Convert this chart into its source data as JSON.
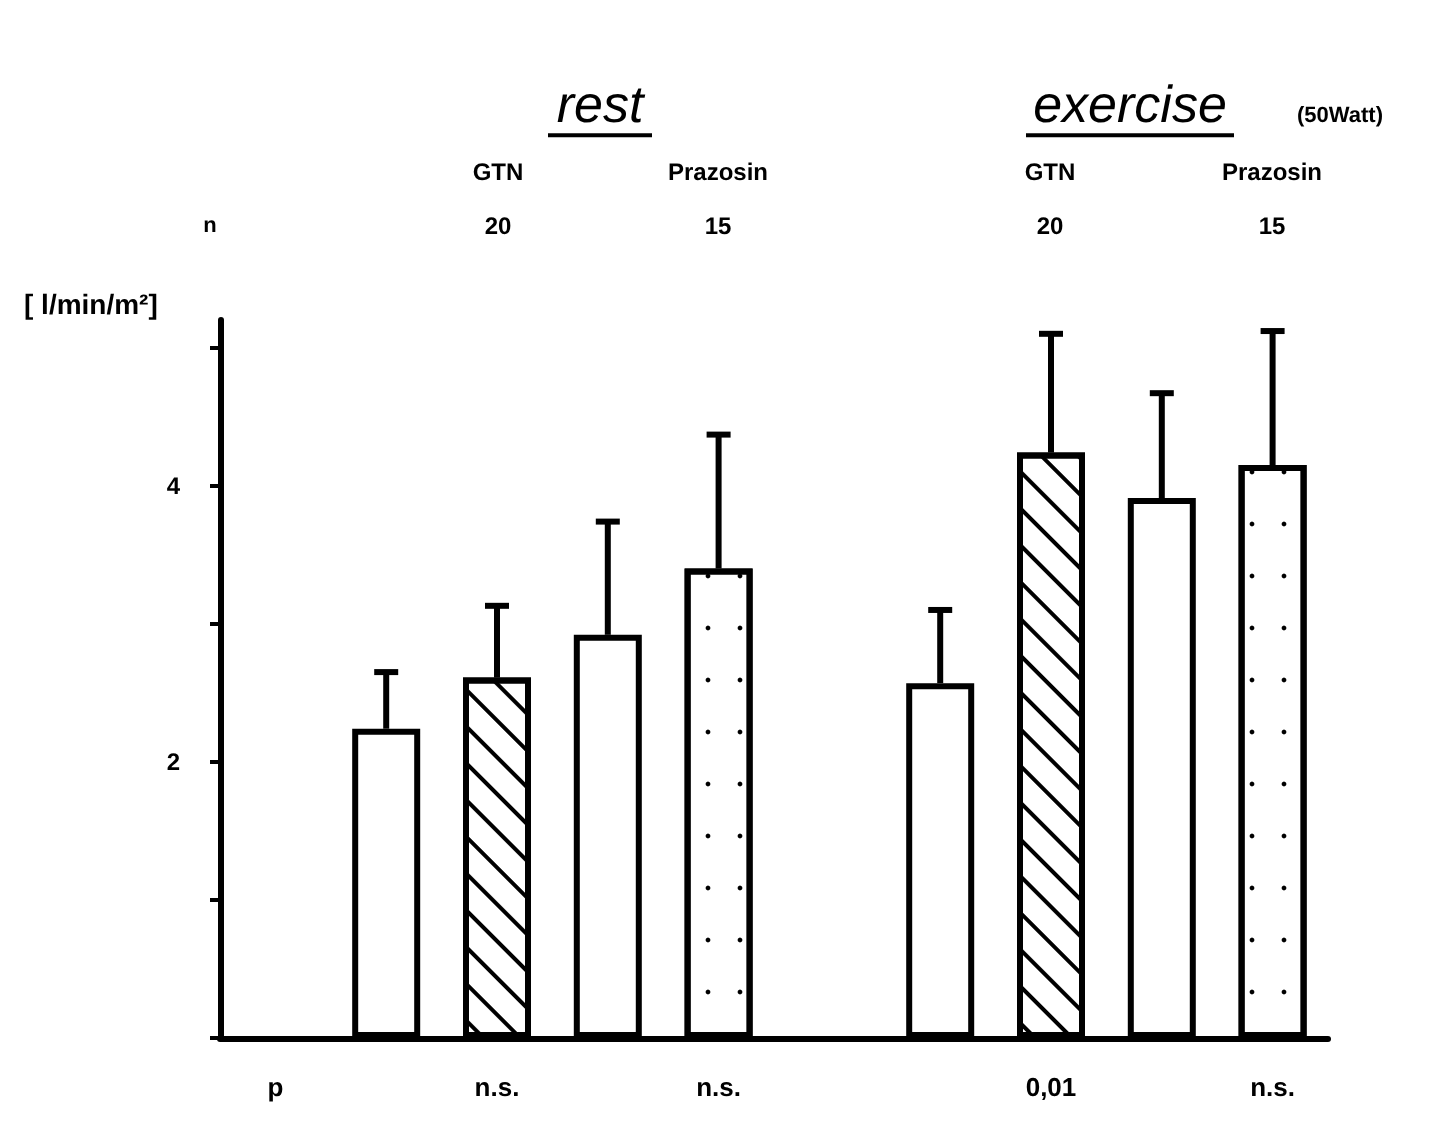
{
  "chart_data": {
    "type": "bar",
    "ylabel": "[ l/min/m²]",
    "categories": [
      "p",
      null,
      "n.s.",
      null,
      "n.s.",
      null,
      null,
      "0,01",
      null,
      "n.s."
    ],
    "series": [
      {
        "color": "#ffffff",
        "values": [
          null,
          2.24,
          null,
          2.92,
          null,
          null,
          2.57,
          null,
          3.91,
          null
        ],
        "errors": [
          null,
          [
            2.24,
            2.65
          ],
          null,
          [
            2.92,
            3.74
          ],
          null,
          null,
          [
            2.57,
            3.1
          ],
          null,
          [
            3.91,
            4.67
          ],
          null
        ]
      },
      {
        "color": "#ffffff",
        "values": [
          null,
          null,
          2.61,
          null,
          null,
          null,
          null,
          4.24,
          null,
          null
        ],
        "errors": [
          null,
          null,
          [
            2.61,
            3.13
          ],
          null,
          null,
          null,
          null,
          [
            4.24,
            5.1
          ],
          null,
          null
        ]
      },
      {
        "color": "#ffffff",
        "values": [
          null,
          null,
          null,
          null,
          3.4,
          null,
          null,
          null,
          null,
          4.15
        ],
        "errors": [
          null,
          null,
          null,
          null,
          [
            3.4,
            4.37
          ],
          null,
          null,
          null,
          null,
          [
            4.15,
            5.12
          ]
        ]
      }
    ],
    "ylim": [
      0,
      5.2
    ],
    "yticks": [
      {
        "value": 0,
        "label": null
      },
      {
        "value": 1,
        "label": null
      },
      2,
      {
        "value": 3,
        "label": null
      },
      4,
      {
        "value": 5,
        "label": null
      }
    ],
    "annotations": [
      "rest",
      "exercise",
      "(50Watt)",
      "GTN",
      "Prazosin",
      "GTN",
      "Prazosin",
      "n",
      "20",
      "15",
      "20",
      "15"
    ],
    "grid": false
  }
}
